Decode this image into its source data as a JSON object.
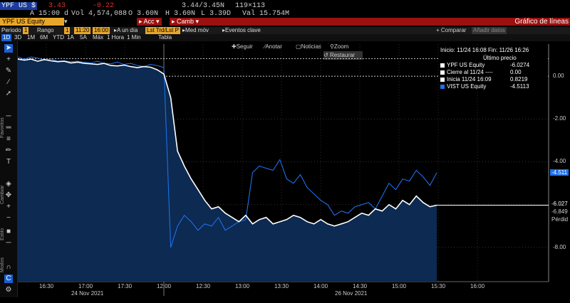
{
  "quote": {
    "ticker": "YPF US $",
    "last": "3.43",
    "change": "-0.22",
    "time_label": "A 15:00 d",
    "volume": "Vol 4,574,088",
    "open": "O 3.60N",
    "high": "H 3.60N",
    "low": "L 3.39D",
    "value": "Val 15.754M",
    "bid_ask": "3.44/3.45N",
    "size": "119×113"
  },
  "toolbar": {
    "security": "YPF US Equity",
    "acc_label": "Acc",
    "camb_label": "Camb",
    "title": "Gráfico de líneas"
  },
  "row2": {
    "periodo": "Periodo",
    "periodo_value": "1",
    "rango": "Rango",
    "rango_value": "1",
    "time_from": "11:20",
    "time_to": "16:00",
    "a_un_dia": "A un día",
    "last_trade": "Lst Trd/Lst P",
    "med_mov": "Med móv",
    "eventos": "Eventos clave",
    "comparar": "+ Comparar",
    "anadir": "Añadir datos"
  },
  "row3": {
    "periods": [
      "1D",
      "3D",
      "1M",
      "6M",
      "YTD",
      "1A",
      "5A",
      "Máx",
      "1 Hora",
      "1 Min"
    ],
    "tabla": "Tabla"
  },
  "chart_tools": {
    "seguir": "Seguir",
    "anotar": "Anotar",
    "noticias": "Noticias",
    "zoom": "Zoom",
    "restaurar": "Restaurar"
  },
  "left_labels": {
    "favoritos": "Favoritos",
    "cambiar": "Cambiar",
    "estilo": "Estilo",
    "modos": "Modos"
  },
  "legend": {
    "range": "Inicio: 11/24 16:08 Fin: 11/26 16:26",
    "header": "Último precio",
    "rows": [
      {
        "label": "YPF US Equity",
        "value": "-6.0274",
        "color": "#ffffff"
      },
      {
        "label": "Cierre al 11/24 ----",
        "value": "0.00",
        "color": "#ffffff"
      },
      {
        "label": "Inicia 11/24 16:09",
        "value": "0.8219",
        "color": "#ffffff"
      },
      {
        "label": "VIST US Equity",
        "value": "-4.5113",
        "color": "#1f6fe8"
      }
    ]
  },
  "axis_tags": {
    "vist": "-4.511",
    "ypf": "-6.027",
    "low": "-6.849",
    "perdida": "Pérdid"
  },
  "chart_data": {
    "type": "line",
    "x_ticks": [
      "16:30",
      "17:00",
      "17:30",
      "12:00",
      "12:30",
      "13:00",
      "13:30",
      "14:00",
      "14:30",
      "15:00",
      "15:30",
      "16:00"
    ],
    "date_labels": [
      "24 Nov 2021",
      "26 Nov 2021"
    ],
    "ylim": [
      -9.6,
      1.5
    ],
    "yticks": [
      0,
      -2,
      -4,
      -6,
      -8
    ],
    "ytick_labels": [
      "0.00",
      "-2.00",
      "-4.00",
      "-6.00",
      "-8.00"
    ],
    "series": [
      {
        "name": "YPF US Equity",
        "color": "#ffffff",
        "values": [
          0.8,
          0.75,
          0.8,
          0.7,
          0.78,
          0.72,
          0.68,
          0.7,
          0.62,
          0.66,
          0.6,
          0.58,
          0.55,
          0.6,
          0.5,
          0.48,
          0.52,
          0.45,
          0.4,
          0.45,
          0.42,
          0.3,
          0.1,
          -1.0,
          -3.5,
          -4.2,
          -4.8,
          -5.3,
          -5.8,
          -6.2,
          -6.1,
          -6.4,
          -6.6,
          -6.8,
          -6.5,
          -6.9,
          -6.7,
          -6.6,
          -6.9,
          -6.8,
          -6.7,
          -6.5,
          -6.6,
          -6.8,
          -6.9,
          -6.7,
          -6.9,
          -7.0,
          -6.9,
          -6.8,
          -6.6,
          -6.4,
          -6.5,
          -6.2,
          -6.3,
          -6.0,
          -6.2,
          -5.8,
          -6.0,
          -5.6,
          -5.9,
          -6.1,
          -6.027
        ]
      },
      {
        "name": "VIST US Equity",
        "color": "#1f6fe8",
        "values": [
          0.9,
          0.8,
          0.9,
          0.85,
          0.75,
          0.8,
          0.7,
          0.72,
          0.68,
          0.7,
          0.65,
          0.62,
          0.7,
          0.6,
          0.58,
          0.66,
          0.55,
          0.6,
          0.5,
          0.45,
          0.55,
          0.5,
          0.4,
          -8.0,
          -7.0,
          -6.5,
          -6.8,
          -7.2,
          -6.9,
          -7.0,
          -6.6,
          -7.2,
          -7.0,
          -6.8,
          -6.7,
          -4.5,
          -4.2,
          -4.3,
          -4.4,
          -3.9,
          -4.8,
          -5.0,
          -4.6,
          -5.2,
          -5.5,
          -5.8,
          -6.0,
          -6.5,
          -6.3,
          -6.4,
          -6.1,
          -6.0,
          -5.9,
          -6.2,
          -5.6,
          -5.0,
          -5.3,
          -4.8,
          -4.9,
          -4.4,
          -4.7,
          -5.1,
          -4.511
        ]
      }
    ],
    "split_index": 23,
    "reference_lines": [
      {
        "name": "Cierre al 11/24",
        "value": 0.0
      },
      {
        "name": "Inicia 11/24 16:09",
        "value": 0.8219
      }
    ]
  }
}
